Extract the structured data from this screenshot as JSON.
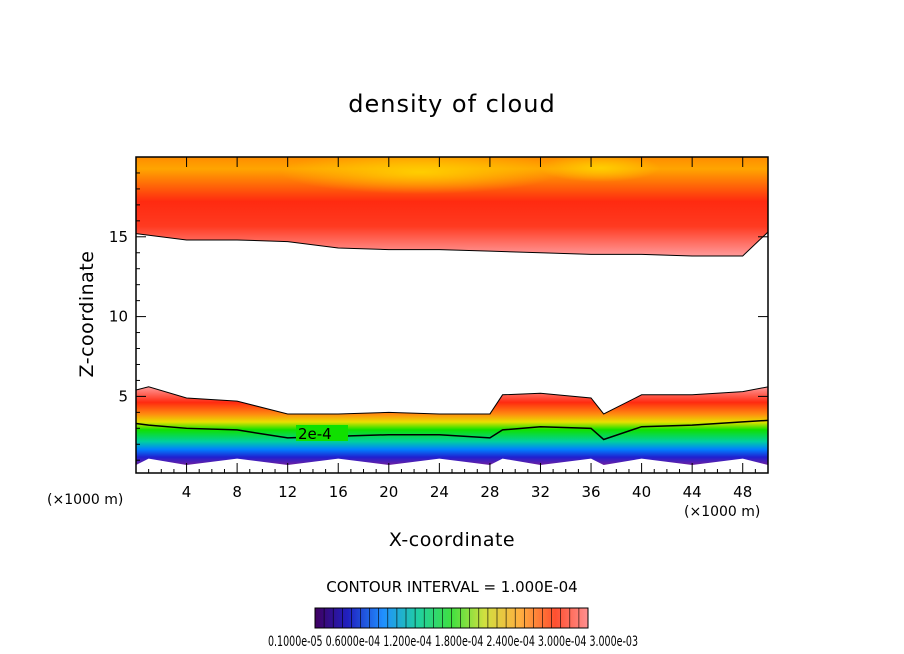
{
  "chart_data": {
    "type": "heatmap",
    "title": "density of cloud",
    "xlabel": "X-coordinate",
    "ylabel": "Z-coordinate",
    "x_unit": "(×1000 m)",
    "y_unit": "(×1000 m)",
    "xlim": [
      0,
      50
    ],
    "ylim": [
      0.2,
      20
    ],
    "x_ticks": [
      "4",
      "8",
      "12",
      "16",
      "20",
      "24",
      "28",
      "32",
      "36",
      "40",
      "44",
      "48"
    ],
    "y_ticks": [
      "5",
      "10",
      "15"
    ],
    "contour_label": "2e-4",
    "contour_interval": "CONTOUR INTERVAL = 1.000E-04",
    "colorbar_labels": [
      "0.1000",
      "0.6",
      "1.2",
      "1.8",
      "2.4",
      "3.0",
      "3.0e-03"
    ],
    "colorbar_label_text": "0.1000e-05 0.6000e-04 1.200e-04 1.800e-04 2.400e-04 3.000e-04 3.000e-03",
    "upper_layer": {
      "x": [
        0,
        4,
        8,
        12,
        16,
        20,
        24,
        28,
        32,
        36,
        40,
        44,
        48,
        50
      ],
      "z_bottom": [
        15.2,
        14.8,
        14.8,
        14.7,
        14.3,
        14.2,
        14.2,
        14.1,
        14.0,
        13.9,
        13.9,
        13.8,
        13.8,
        15.3
      ]
    },
    "lower_layer": {
      "x": [
        0,
        1,
        4,
        8,
        12,
        16,
        20,
        24,
        28,
        29,
        32,
        36,
        37,
        40,
        44,
        48,
        50
      ],
      "z_top": [
        5.4,
        5.6,
        4.9,
        4.7,
        3.9,
        3.9,
        4.0,
        3.9,
        3.9,
        5.1,
        5.2,
        4.9,
        3.9,
        5.1,
        5.1,
        5.3,
        5.6
      ],
      "z_contour_2e4": [
        3.3,
        3.2,
        3.0,
        2.9,
        2.4,
        2.5,
        2.6,
        2.6,
        2.4,
        2.9,
        3.1,
        3.0,
        2.3,
        3.1,
        3.2,
        3.4,
        3.5
      ]
    }
  }
}
